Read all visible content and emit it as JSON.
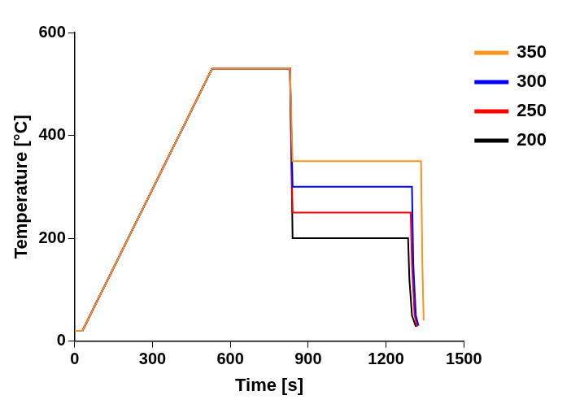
{
  "chart_data": {
    "type": "line",
    "x_label": "Time [s]",
    "y_label": "Temperature [°C]",
    "xlim": [
      0,
      1500
    ],
    "xticks": [
      0,
      300,
      600,
      900,
      1200,
      1500
    ],
    "ylim": [
      0,
      600
    ],
    "yticks": [
      0,
      200,
      400,
      600
    ],
    "grid": false,
    "legend": "right",
    "series": [
      {
        "name": "350",
        "color": "#f7941d",
        "x": [
          0,
          30,
          530,
          830,
          840,
          1335,
          1340,
          1345
        ],
        "values": [
          20,
          20,
          530,
          530,
          350,
          350,
          150,
          40
        ]
      },
      {
        "name": "300",
        "color": "#0000ff",
        "x": [
          0,
          30,
          530,
          830,
          840,
          1300,
          1305,
          1315,
          1325
        ],
        "values": [
          20,
          20,
          530,
          530,
          300,
          300,
          150,
          50,
          30
        ]
      },
      {
        "name": "250",
        "color": "#ff0000",
        "x": [
          0,
          30,
          530,
          830,
          840,
          1295,
          1300,
          1310,
          1320
        ],
        "values": [
          20,
          20,
          530,
          530,
          250,
          250,
          150,
          50,
          28
        ]
      },
      {
        "name": "200",
        "color": "#000000",
        "x": [
          0,
          30,
          530,
          830,
          840,
          1285,
          1290,
          1300,
          1315
        ],
        "values": [
          20,
          20,
          530,
          530,
          200,
          200,
          120,
          50,
          28
        ]
      }
    ]
  }
}
